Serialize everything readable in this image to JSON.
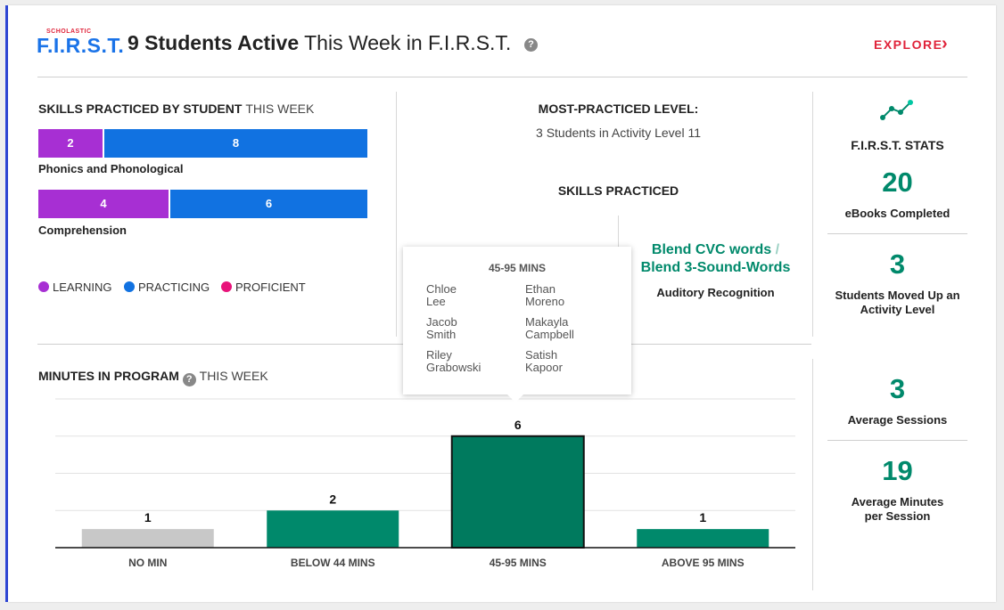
{
  "header": {
    "logo_small": "SCHOLASTIC",
    "logo_big_left": "F.I.R",
    "logo_big_right": ".S.T.",
    "title_bold": "9 Students Active",
    "title_rest": " This Week in F.I.R.S.T.",
    "help_icon": "question-circle-icon",
    "explore_label": "EXPLORE",
    "explore_icon": "chevron-right-icon"
  },
  "skills_by_student": {
    "title": "SKILLS PRACTICED BY STUDENT",
    "title_suffix": "THIS WEEK",
    "groups": [
      {
        "name": "Phonics and Phonological",
        "learning": 2,
        "practicing": 8
      },
      {
        "name": "Comprehension",
        "learning": 4,
        "practicing": 6
      }
    ],
    "legend": [
      {
        "label": "LEARNING",
        "color": "#a72fd3"
      },
      {
        "label": "PRACTICING",
        "color": "#1172e1"
      },
      {
        "label": "PROFICIENT",
        "color": "#e8137a"
      }
    ]
  },
  "middle": {
    "most_practiced_title": "MOST-PRACTICED LEVEL:",
    "most_practiced_value": "3 Students in Activity Level 11",
    "skills_practiced_title": "SKILLS PRACTICED",
    "skill_link_1": "Blend CVC words",
    "skill_link_sep": "/",
    "skill_link_2": "Blend 3-Sound-Words",
    "skill_category": "Auditory Recognition"
  },
  "stats": {
    "icon": "trend-line-icon",
    "title": "F.I.R.S.T. STATS",
    "items": [
      {
        "value": "20",
        "label": "eBooks Completed"
      },
      {
        "value": "3",
        "label": "Students Moved Up an Activity Level"
      },
      {
        "value": "3",
        "label": "Average Sessions"
      },
      {
        "value": "19",
        "label": "Average Minutes per Session"
      }
    ]
  },
  "minutes": {
    "title": "MINUTES IN PROGRAM",
    "title_suffix": "THIS WEEK",
    "help_icon": "question-circle-icon"
  },
  "tooltip": {
    "title": "45-95 MINS",
    "names": [
      [
        "Chloe",
        "Lee"
      ],
      [
        "Ethan",
        "Moreno"
      ],
      [
        "Jacob",
        "Smith"
      ],
      [
        "Makayla",
        "Campbell"
      ],
      [
        "Riley",
        "Grabowski"
      ],
      [
        "Satish",
        "Kapoor"
      ]
    ]
  },
  "colors": {
    "accent_blue": "#2f47d6",
    "brand_red": "#e0233a",
    "green": "#00896b",
    "bar_gray": "#c8c8c8",
    "bar_green": "#00896b",
    "bar_selected": "#007a5e"
  },
  "chart_data": {
    "type": "bar",
    "categories": [
      "NO MIN",
      "BELOW 44 MINS",
      "45-95 MINS",
      "ABOVE 95 MINS"
    ],
    "values": [
      1,
      2,
      6,
      1
    ],
    "ylim": [
      0,
      8
    ],
    "selected_index": 2,
    "grid": true
  }
}
